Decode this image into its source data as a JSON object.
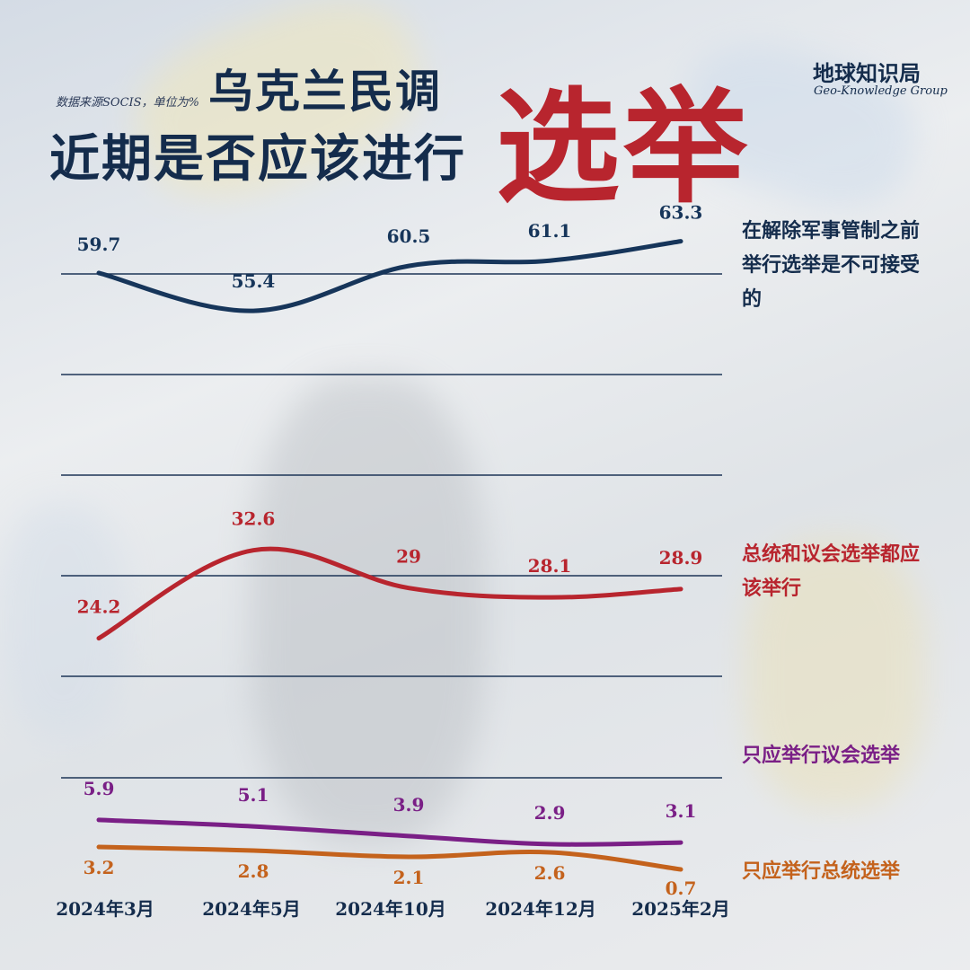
{
  "header": {
    "source": "数据来源SOCIS，单位为%",
    "title_line1": "乌克兰民调",
    "title_line2": "近期是否应该进行",
    "title_accent": "选举",
    "brand": "地球知识局",
    "brand_sub": "Geo-Knowledge Group"
  },
  "chart_data": {
    "type": "line",
    "title": "乌克兰民调 近期是否应该进行选举",
    "x": [
      "2024年3月",
      "2024年5月",
      "2024年10月",
      "2024年12月",
      "2025年2月"
    ],
    "ylabel": "",
    "unit": "%",
    "grid": true,
    "series": [
      {
        "name": "在解除军事管制之前举行选举是不可接受的",
        "values": [
          59.7,
          55.4,
          60.5,
          61.1,
          63.3
        ],
        "color": "#16355a"
      },
      {
        "name": "总统和议会选举都应该举行",
        "values": [
          24.2,
          32.6,
          29,
          28.1,
          28.9
        ],
        "color": "#b8252e"
      },
      {
        "name": "只应举行议会选举",
        "values": [
          5.9,
          5.1,
          3.9,
          2.9,
          3.1
        ],
        "color": "#7a1f86"
      },
      {
        "name": "只应举行总统选举",
        "values": [
          3.2,
          2.8,
          2.1,
          2.6,
          0.7
        ],
        "color": "#c4621c"
      }
    ]
  }
}
